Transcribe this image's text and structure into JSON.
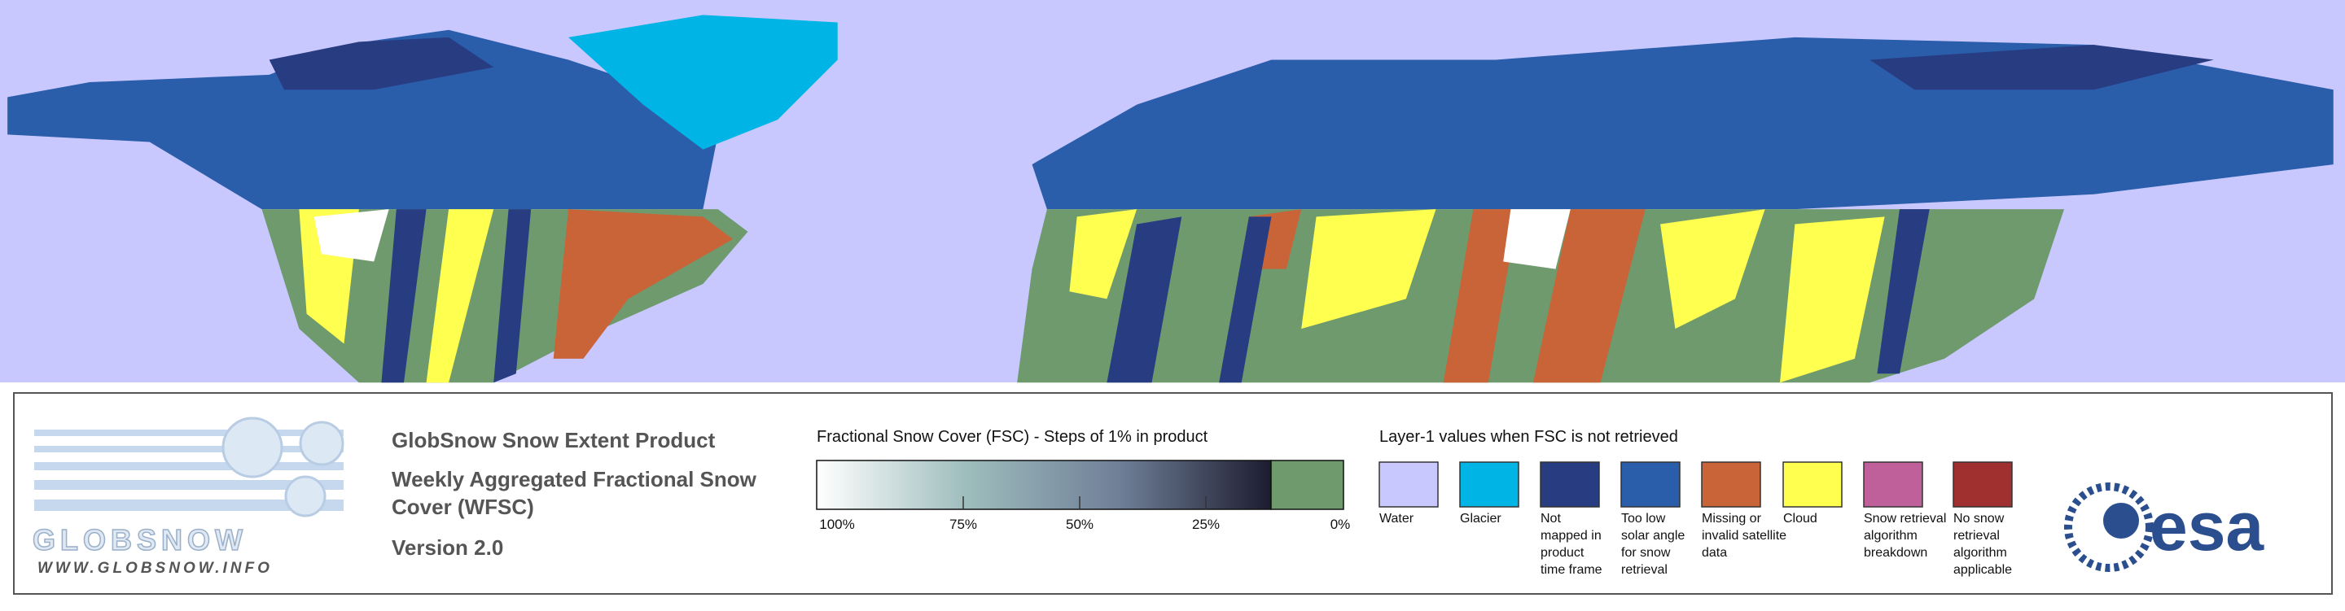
{
  "logo": {
    "name": "GLOBSNOW",
    "url": "WWW.GLOBSNOW.INFO"
  },
  "header": {
    "title": "GlobSnow Snow Extent Product",
    "subtitle_lines": [
      "Weekly Aggregated Fractional Snow",
      "Cover (WFSC)"
    ],
    "version": "Version 2.0"
  },
  "fsc_scale": {
    "title": "Fractional Snow Cover (FSC) - Steps of 1% in product",
    "ticks": [
      "100%",
      "75%",
      "50%",
      "25%",
      "0%"
    ],
    "gradient_colors": [
      "#ffffff",
      "#9dbcbc",
      "#6f7f97",
      "#1c1c30"
    ],
    "zero_color": "#6e9a6e"
  },
  "layer1_legend": {
    "title": "Layer-1 values when FSC is not retrieved",
    "items": [
      {
        "label_lines": [
          "Water"
        ],
        "color": "#c8c8ff"
      },
      {
        "label_lines": [
          "Glacier"
        ],
        "color": "#00b4e6"
      },
      {
        "label_lines": [
          "Not",
          "mapped in",
          "product",
          "time frame"
        ],
        "color": "#283c82"
      },
      {
        "label_lines": [
          "Too low",
          "solar angle",
          "for snow",
          "retrieval"
        ],
        "color": "#2a5daa"
      },
      {
        "label_lines": [
          "Missing or",
          "invalid satellite",
          "data"
        ],
        "color": "#c86438"
      },
      {
        "label_lines": [
          "Cloud"
        ],
        "color": "#ffff50"
      },
      {
        "label_lines": [
          "Snow retrieval",
          "algorithm",
          "breakdown"
        ],
        "color": "#c0609a"
      },
      {
        "label_lines": [
          "No snow",
          "retrieval",
          "algorithm",
          "applicable"
        ],
        "color": "#a03030"
      }
    ]
  },
  "esa_logo": "esa"
}
